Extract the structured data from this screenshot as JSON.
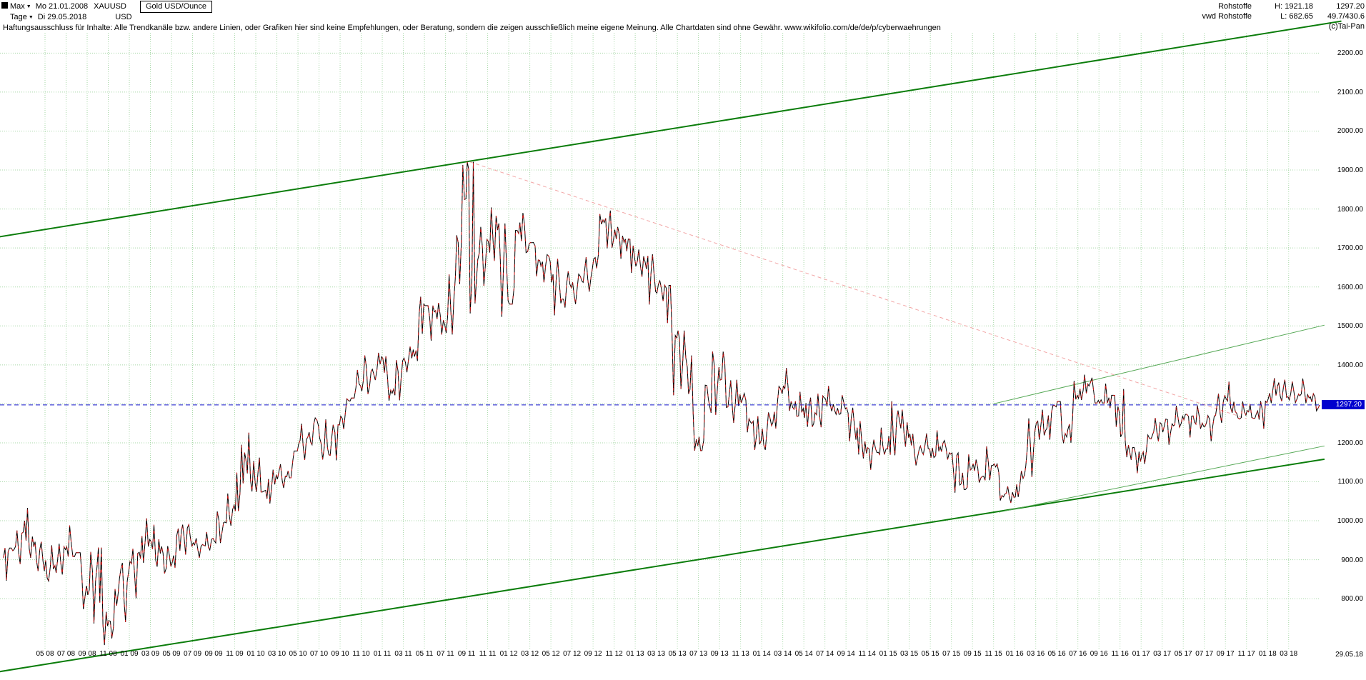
{
  "header": {
    "range_selector": "Max",
    "start_date": "Mo 21.01.2008",
    "symbol": "XAUUSD",
    "instrument_title": "Gold USD/Ounce",
    "period_selector": "Tage",
    "end_date": "Di 29.05.2018",
    "currency": "USD",
    "info": {
      "group": "Rohstoffe",
      "provider": "vwd Rohstoffe",
      "high_label": "H: 1921.18",
      "low_label": "L: 682.65",
      "last_price": "1297.20",
      "stat": "49.7/430.6",
      "copyright": "(c)Tai-Pan"
    },
    "disclaimer": "Haftungsausschluss für Inhalte: Alle Trendkanäle bzw. andere Linien, oder Grafiken hier sind keine Empfehlungen, oder Beratung, sondern die zeigen ausschließlich meine eigene Meinung. Alle Chartdaten sind ohne Gewähr.  www.wikifolio.com/de/de/p/cyberwaehrungen"
  },
  "axes": {
    "y_ticks": [
      "2200.00",
      "2100.00",
      "2000.00",
      "1900.00",
      "1800.00",
      "1700.00",
      "1600.00",
      "1500.00",
      "1400.00",
      "1200.00",
      "1100.00",
      "1000.00",
      "900.00",
      "800.00"
    ],
    "x_ticks": [
      "05 08",
      "07 08",
      "09 08",
      "11 08",
      "01 09",
      "03 09",
      "05 09",
      "07 09",
      "09 09",
      "11 09",
      "01 10",
      "03 10",
      "05 10",
      "07 10",
      "09 10",
      "11 10",
      "01 11",
      "03 11",
      "05 11",
      "07 11",
      "09 11",
      "11 11",
      "01 12",
      "03 12",
      "05 12",
      "07 12",
      "09 12",
      "11 12",
      "01 13",
      "03 13",
      "05 13",
      "07 13",
      "09 13",
      "11 13",
      "01 14",
      "03 14",
      "05 14",
      "07 14",
      "09 14",
      "11 14",
      "01 15",
      "03 15",
      "05 15",
      "07 15",
      "09 15",
      "11 15",
      "01 16",
      "03 16",
      "05 16",
      "07 16",
      "09 16",
      "11 16",
      "01 17",
      "03 17",
      "05 17",
      "07 17",
      "09 17",
      "11 17",
      "01 18",
      "03 18"
    ],
    "current_price_label": "1297.20",
    "last_date_label": "29.05.18"
  },
  "chart_data": {
    "type": "candlestick",
    "title": "Gold USD/Ounce",
    "symbol": "XAUUSD",
    "x_start": "21.01.2008",
    "x_end": "29.05.2018",
    "interval_rendered": "daily candles (captured below as monthly high/low/close)",
    "ylim": [
      672,
      2252
    ],
    "y_tick_step": 100,
    "grid": true,
    "legend": "none",
    "current_price": 1297.2,
    "period_high": 1921.18,
    "period_low": 682.65,
    "series": [
      {
        "name": "XAUUSD",
        "start": "2008-01",
        "interval": "monthly",
        "high": [
          930,
          975,
          1033,
          946,
          937,
          941,
          988,
          918,
          920,
          931,
          825,
          892,
          928,
          1006,
          990,
          935,
          980,
          990,
          955,
          971,
          1024,
          1070,
          1195,
          1226,
          1162,
          1131,
          1145,
          1179,
          1249,
          1264,
          1260,
          1246,
          1313,
          1387,
          1424,
          1431,
          1422,
          1412,
          1447,
          1575,
          1552,
          1559,
          1632,
          1913,
          1921,
          1754,
          1804,
          1763,
          1745,
          1790,
          1714,
          1683,
          1672,
          1640,
          1633,
          1676,
          1787,
          1796,
          1754,
          1723,
          1696,
          1684,
          1616,
          1604,
          1488,
          1424,
          1348,
          1434,
          1434,
          1362,
          1327,
          1268,
          1278,
          1345,
          1392,
          1331,
          1316,
          1326,
          1346,
          1322,
          1290,
          1256,
          1208,
          1239,
          1307,
          1285,
          1223,
          1224,
          1232,
          1206,
          1174,
          1170,
          1157,
          1191,
          1146,
          1088,
          1128,
          1263,
          1285,
          1296,
          1306,
          1359,
          1375,
          1367,
          1352,
          1322,
          1338,
          1188,
          1220,
          1264,
          1261,
          1295,
          1273,
          1296,
          1270,
          1326,
          1357,
          1306,
          1299,
          1307,
          1366,
          1362,
          1357,
          1365,
          1326
        ],
        "low": [
          846,
          889,
          905,
          871,
          845,
          862,
          908,
          773,
          736,
          681,
          698,
          740,
          801,
          892,
          882,
          865,
          879,
          913,
          905,
          925,
          943,
          987,
          1025,
          1075,
          1074,
          1044,
          1084,
          1110,
          1156,
          1195,
          1157,
          1155,
          1235,
          1315,
          1325,
          1361,
          1308,
          1309,
          1381,
          1410,
          1462,
          1478,
          1478,
          1607,
          1532,
          1603,
          1667,
          1523,
          1556,
          1688,
          1627,
          1612,
          1527,
          1547,
          1556,
          1588,
          1648,
          1699,
          1672,
          1636,
          1626,
          1555,
          1564,
          1322,
          1338,
          1180,
          1180,
          1272,
          1291,
          1251,
          1227,
          1182,
          1182,
          1237,
          1282,
          1268,
          1241,
          1240,
          1281,
          1273,
          1204,
          1160,
          1131,
          1170,
          1168,
          1190,
          1142,
          1170,
          1162,
          1157,
          1072,
          1080,
          1098,
          1104,
          1052,
          1046,
          1061,
          1112,
          1208,
          1208,
          1199,
          1200,
          1310,
          1302,
          1302,
          1241,
          1163,
          1122,
          1146,
          1204,
          1195,
          1240,
          1214,
          1236,
          1204,
          1251,
          1277,
          1261,
          1263,
          1236,
          1302,
          1307,
          1303,
          1302,
          1282
        ],
        "close": [
          923,
          971,
          933,
          871,
          885,
          926,
          918,
          833,
          884,
          730,
          814,
          869,
          919,
          952,
          916,
          883,
          975,
          934,
          939,
          955,
          995,
          1040,
          1175,
          1096,
          1078,
          1118,
          1113,
          1179,
          1215,
          1244,
          1169,
          1246,
          1307,
          1346,
          1383,
          1421,
          1327,
          1411,
          1439,
          1556,
          1536,
          1502,
          1628,
          1826,
          1620,
          1722,
          1746,
          1564,
          1737,
          1711,
          1668,
          1664,
          1558,
          1598,
          1615,
          1648,
          1772,
          1720,
          1714,
          1675,
          1664,
          1588,
          1597,
          1469,
          1394,
          1192,
          1312,
          1394,
          1327,
          1324,
          1253,
          1205,
          1244,
          1326,
          1291,
          1288,
          1250,
          1315,
          1282,
          1287,
          1208,
          1173,
          1175,
          1184,
          1283,
          1213,
          1183,
          1184,
          1190,
          1171,
          1095,
          1134,
          1114,
          1142,
          1061,
          1060,
          1118,
          1234,
          1232,
          1292,
          1215,
          1322,
          1351,
          1309,
          1316,
          1277,
          1173,
          1152,
          1210,
          1248,
          1249,
          1268,
          1269,
          1242,
          1269,
          1321,
          1280,
          1271,
          1275,
          1303,
          1345,
          1318,
          1325,
          1315,
          1297.2
        ]
      }
    ],
    "trend_lines": [
      {
        "name": "channel-upper",
        "color": "#0b7d0b",
        "width": 2,
        "dash": "",
        "points": [
          {
            "m": -0.5,
            "price": 1728
          },
          {
            "m": 127,
            "price": 2282
          }
        ]
      },
      {
        "name": "channel-lower",
        "color": "#0b7d0b",
        "width": 2,
        "dash": "",
        "points": [
          {
            "m": -0.5,
            "price": 612
          },
          {
            "m": 125.4,
            "price": 1158
          }
        ]
      },
      {
        "name": "minor-channel-upper",
        "color": "#55a855",
        "width": 1,
        "dash": "",
        "points": [
          {
            "m": 94,
            "price": 1300
          },
          {
            "m": 125.4,
            "price": 1502
          }
        ]
      },
      {
        "name": "minor-channel-lower",
        "color": "#55a855",
        "width": 1,
        "dash": "",
        "points": [
          {
            "m": 94.5,
            "price": 1022
          },
          {
            "m": 125.4,
            "price": 1192
          }
        ]
      },
      {
        "name": "resistance-from-2011-high",
        "color": "#f2a6a6",
        "width": 1,
        "dash": "5 4",
        "points": [
          {
            "m": 44.3,
            "price": 1921
          },
          {
            "m": 118,
            "price": 1262
          }
        ]
      }
    ],
    "current_price_line": {
      "price": 1297.2,
      "color": "#1414cc",
      "dash": "6 4"
    },
    "colors": {
      "candle_up": "#000000",
      "candle_down": "#c81414",
      "grid": "#a8d8a8",
      "price_tag_bg": "#0000ce",
      "price_tag_text": "#ffffff",
      "background": "#ffffff"
    }
  }
}
